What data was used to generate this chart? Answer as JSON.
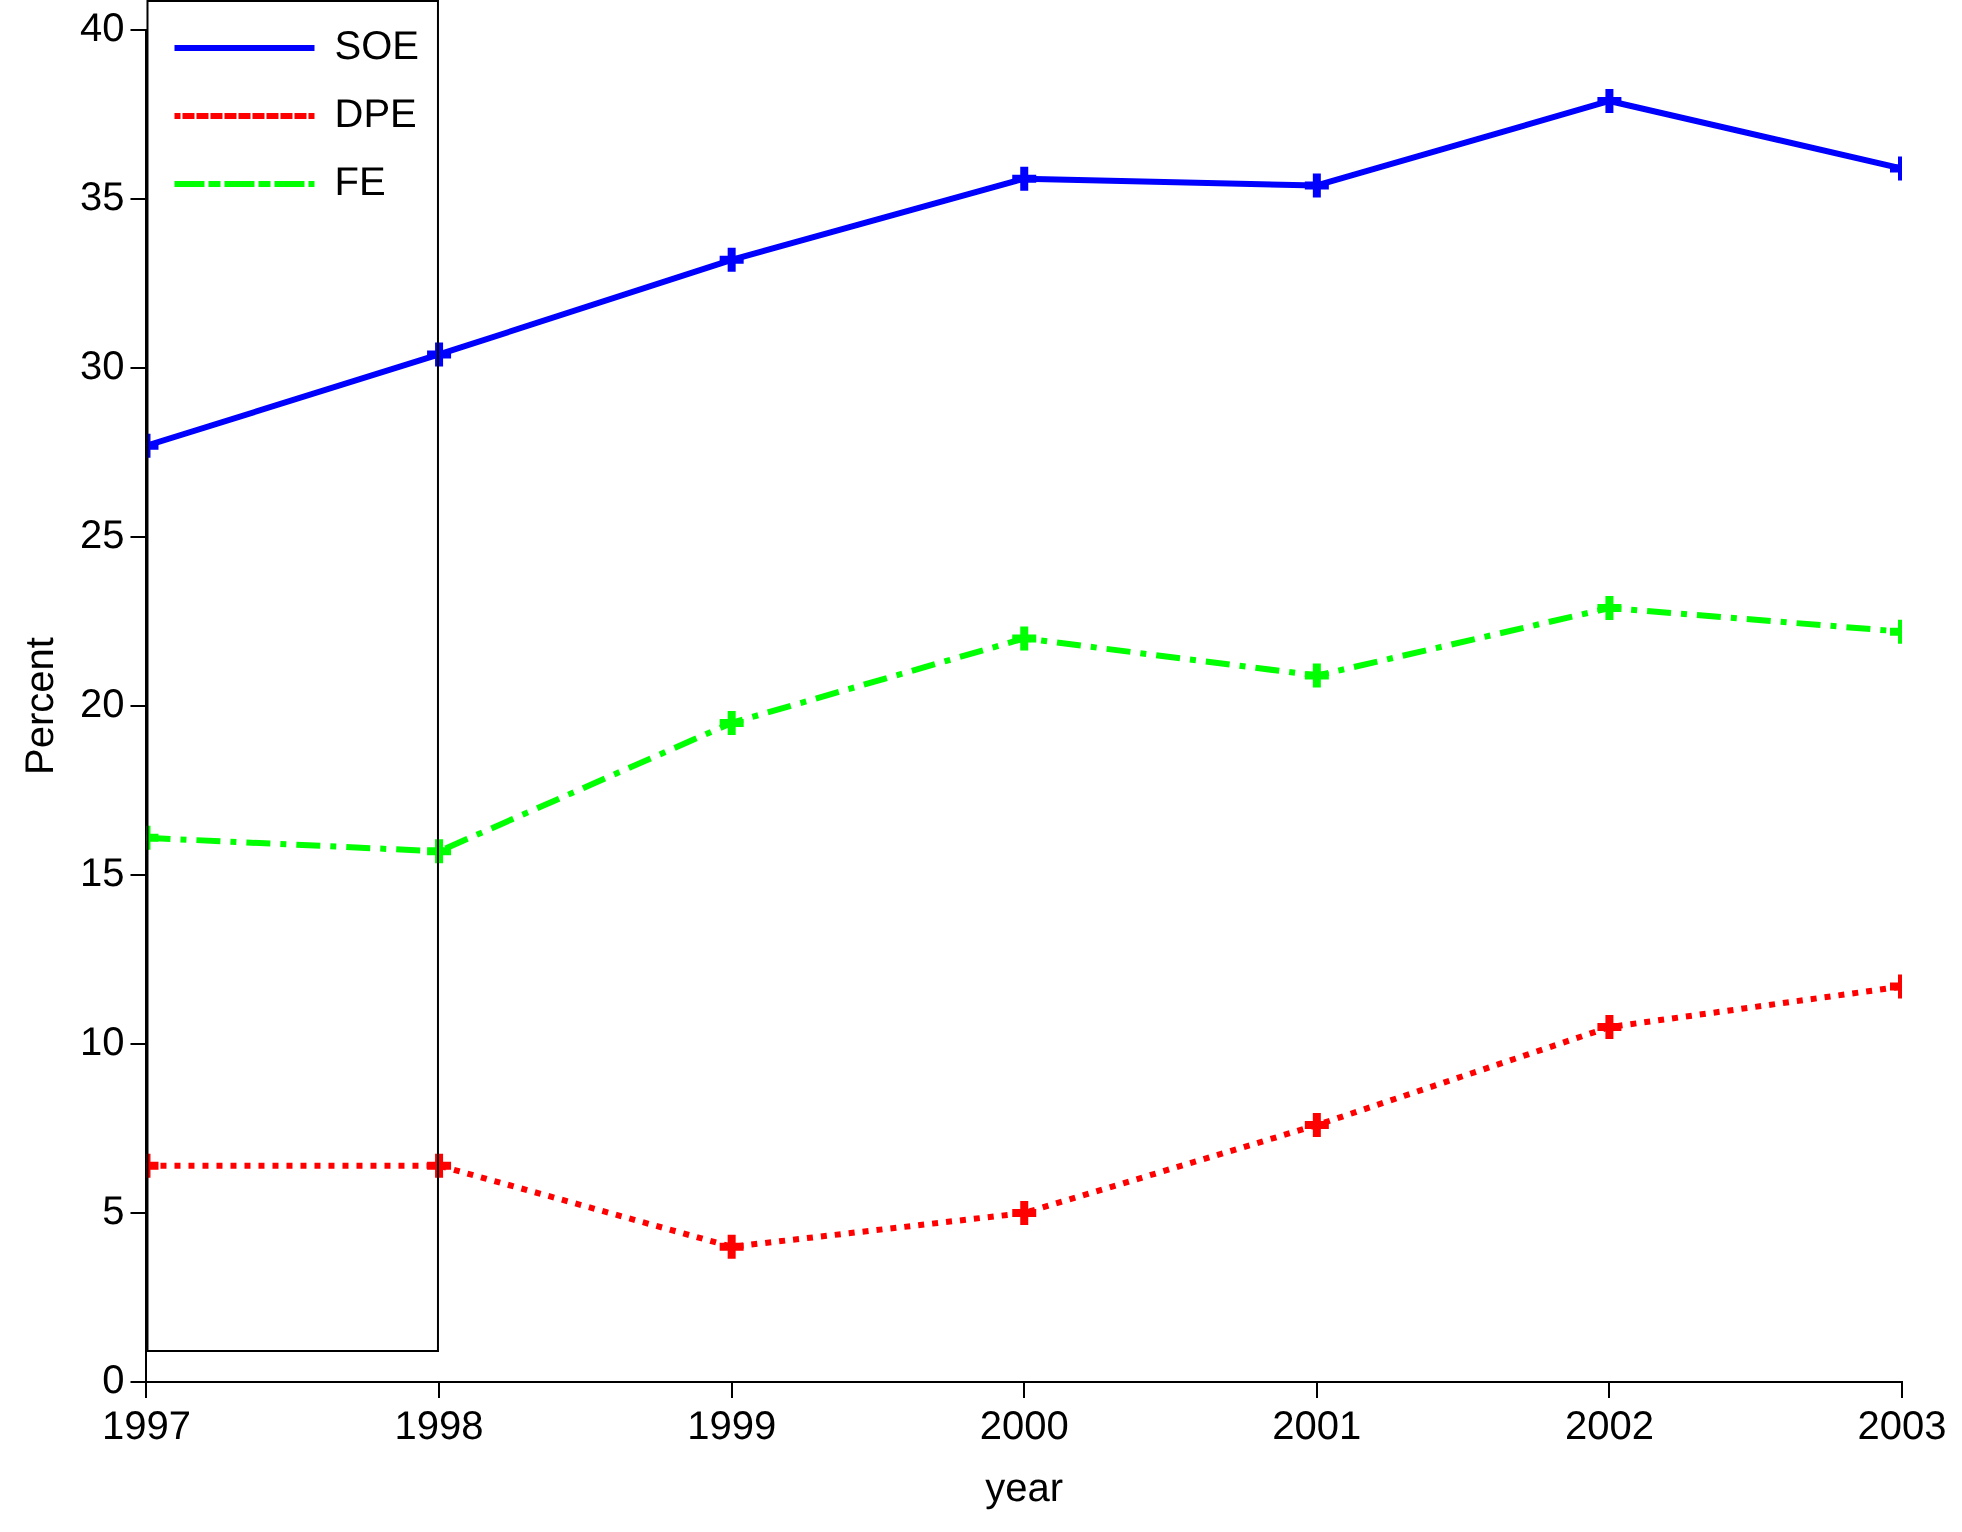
{
  "chart_data": {
    "type": "line",
    "xlabel": "year",
    "ylabel": "Percent",
    "x": [
      1997,
      1998,
      1999,
      2000,
      2001,
      2002,
      2003
    ],
    "xlim": [
      1997,
      2003
    ],
    "xticks": [
      1997,
      1998,
      1999,
      2000,
      2001,
      2002,
      2003
    ],
    "ylim": [
      0,
      40
    ],
    "yticks": [
      0,
      5,
      10,
      15,
      20,
      25,
      30,
      35,
      40
    ],
    "grid": false,
    "legend": "top left",
    "marker": "cross",
    "series": [
      {
        "name": "SOE",
        "color": "#0000ff",
        "line_style": "solid",
        "values": [
          27.7,
          30.4,
          33.2,
          35.6,
          35.4,
          37.9,
          35.9
        ]
      },
      {
        "name": "DPE",
        "color": "#ff0000",
        "line_style": "dotted",
        "values": [
          6.4,
          6.4,
          4.0,
          5.0,
          7.6,
          10.5,
          11.7
        ]
      },
      {
        "name": "FE",
        "color": "#00ff00",
        "line_style": "dashed",
        "values": [
          16.1,
          15.7,
          19.5,
          22.0,
          20.9,
          22.9,
          22.2
        ]
      }
    ]
  }
}
